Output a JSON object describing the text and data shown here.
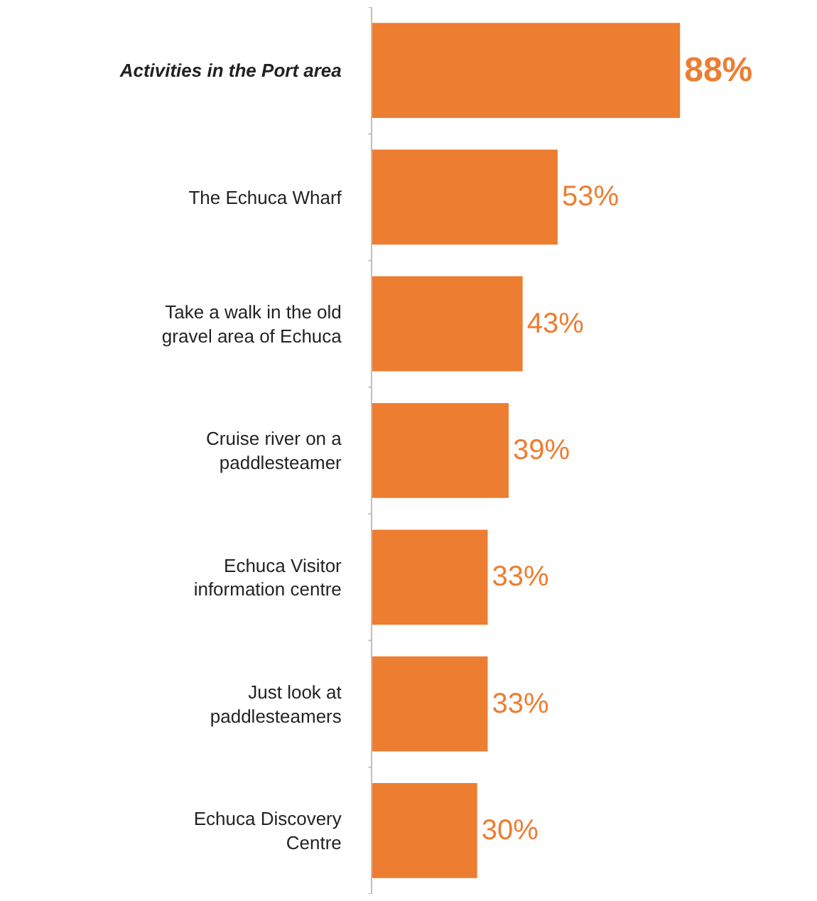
{
  "chart_data": {
    "type": "bar",
    "orientation": "horizontal",
    "categories": [
      "Activities in the Port area",
      "The Echuca Wharf",
      "Take a walk in the old gravel area of Echuca",
      "Cruise river on a paddlesteamer",
      "Echuca Visitor information centre",
      "Just look at paddlesteamers",
      "Echuca Discovery Centre"
    ],
    "values": [
      88,
      53,
      43,
      39,
      33,
      33,
      30
    ],
    "value_labels": [
      "88%",
      "53%",
      "43%",
      "39%",
      "33%",
      "33%",
      "30%"
    ],
    "color": "#ed7d31"
  }
}
